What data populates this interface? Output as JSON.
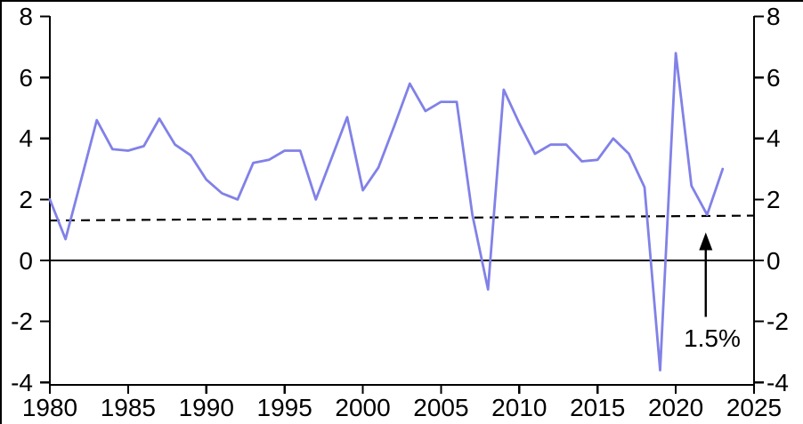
{
  "chart_data": {
    "type": "line",
    "title": "",
    "xlabel": "",
    "ylabel": "",
    "x": [
      1980,
      1981,
      1982,
      1983,
      1984,
      1985,
      1986,
      1987,
      1988,
      1989,
      1990,
      1991,
      1992,
      1993,
      1994,
      1995,
      1996,
      1997,
      1998,
      1999,
      2000,
      2001,
      2002,
      2003,
      2004,
      2005,
      2006,
      2007,
      2008,
      2009,
      2010,
      2011,
      2012,
      2013,
      2014,
      2015,
      2016,
      2017,
      2018,
      2019,
      2020,
      2021,
      2022,
      2023
    ],
    "series": [
      {
        "name": "series-1",
        "color": "#8181E8",
        "values": [
          2.0,
          0.7,
          2.65,
          4.6,
          3.65,
          3.6,
          3.75,
          4.65,
          3.8,
          3.45,
          2.65,
          2.2,
          2.0,
          3.2,
          3.3,
          3.6,
          3.6,
          2.0,
          3.35,
          4.7,
          2.3,
          3.05,
          4.4,
          5.8,
          4.9,
          5.2,
          5.2,
          1.5,
          -0.95,
          5.6,
          4.5,
          3.5,
          3.8,
          3.8,
          3.25,
          3.3,
          4.0,
          3.5,
          2.4,
          -3.6,
          6.8,
          2.45,
          1.5,
          3.0
        ]
      }
    ],
    "trend_line": {
      "style": "dashed",
      "start_year": 1980,
      "end_year": 2025,
      "start_value": 1.31,
      "end_value": 1.47
    },
    "annotation": {
      "label": "1.5%",
      "points_to": "dashed trend line near 2022",
      "value": 1.5
    },
    "axes": {
      "x_min": 1980,
      "x_max": 2025,
      "y_min": -4,
      "y_max": 8,
      "x_tick_values": [
        1980,
        1985,
        1990,
        1995,
        2000,
        2005,
        2010,
        2015,
        2020,
        2025
      ],
      "x_tick_labels": [
        "1980",
        "1985",
        "1990",
        "1995",
        "2000",
        "2005",
        "2010",
        "2015",
        "2020",
        "2025"
      ],
      "y_tick_values": [
        8,
        6,
        4,
        2,
        0,
        -2,
        -4
      ],
      "y_tick_labels": [
        "8",
        "6",
        "4",
        "2",
        "0",
        "-2",
        "-4"
      ],
      "y_axis_sides": "both",
      "grid": false,
      "zero_line": true
    },
    "legend": {
      "visible": false
    },
    "colors": {
      "line": "#8181E8",
      "axis": "#000000",
      "trend": "#000000",
      "annotation": "#000000",
      "background": "#FFFFFF"
    }
  }
}
